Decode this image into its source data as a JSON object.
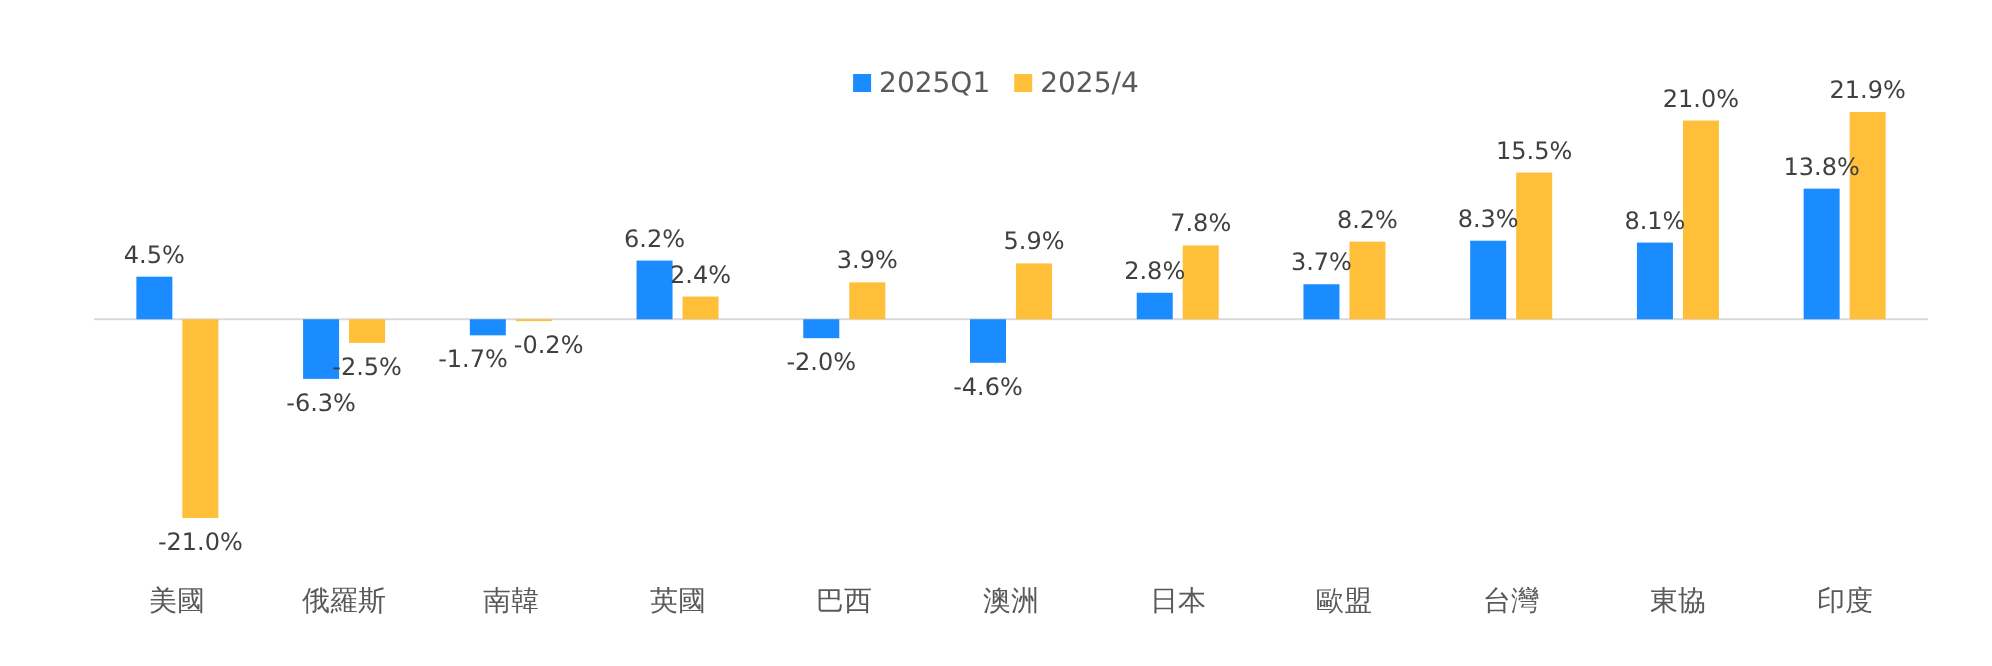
{
  "chart_data": {
    "type": "bar",
    "legend": "top",
    "categories": [
      "美國",
      "俄羅斯",
      "南韓",
      "英國",
      "巴西",
      "澳洲",
      "日本",
      "歐盟",
      "台灣",
      "東協",
      "印度"
    ],
    "series": [
      {
        "name": "2025Q1",
        "color": "#1a8cff",
        "values": [
          4.5,
          -6.3,
          -1.7,
          6.2,
          -2.0,
          -4.6,
          2.8,
          3.7,
          8.3,
          8.1,
          13.8
        ],
        "value_labels": [
          "4.5%",
          "-6.3%",
          "-1.7%",
          "6.2%",
          "-2.0%",
          "-4.6%",
          "2.8%",
          "3.7%",
          "8.3%",
          "8.1%",
          "13.8%"
        ]
      },
      {
        "name": "2025/4",
        "color": "#ffbf38",
        "values": [
          -21.0,
          -2.5,
          -0.2,
          2.4,
          3.9,
          5.9,
          7.8,
          8.2,
          15.5,
          21.0,
          21.9
        ],
        "value_labels": [
          "-21.0%",
          "-2.5%",
          "-0.2%",
          "2.4%",
          "3.9%",
          "5.9%",
          "7.8%",
          "8.2%",
          "15.5%",
          "21.0%",
          "21.9%"
        ]
      }
    ]
  }
}
